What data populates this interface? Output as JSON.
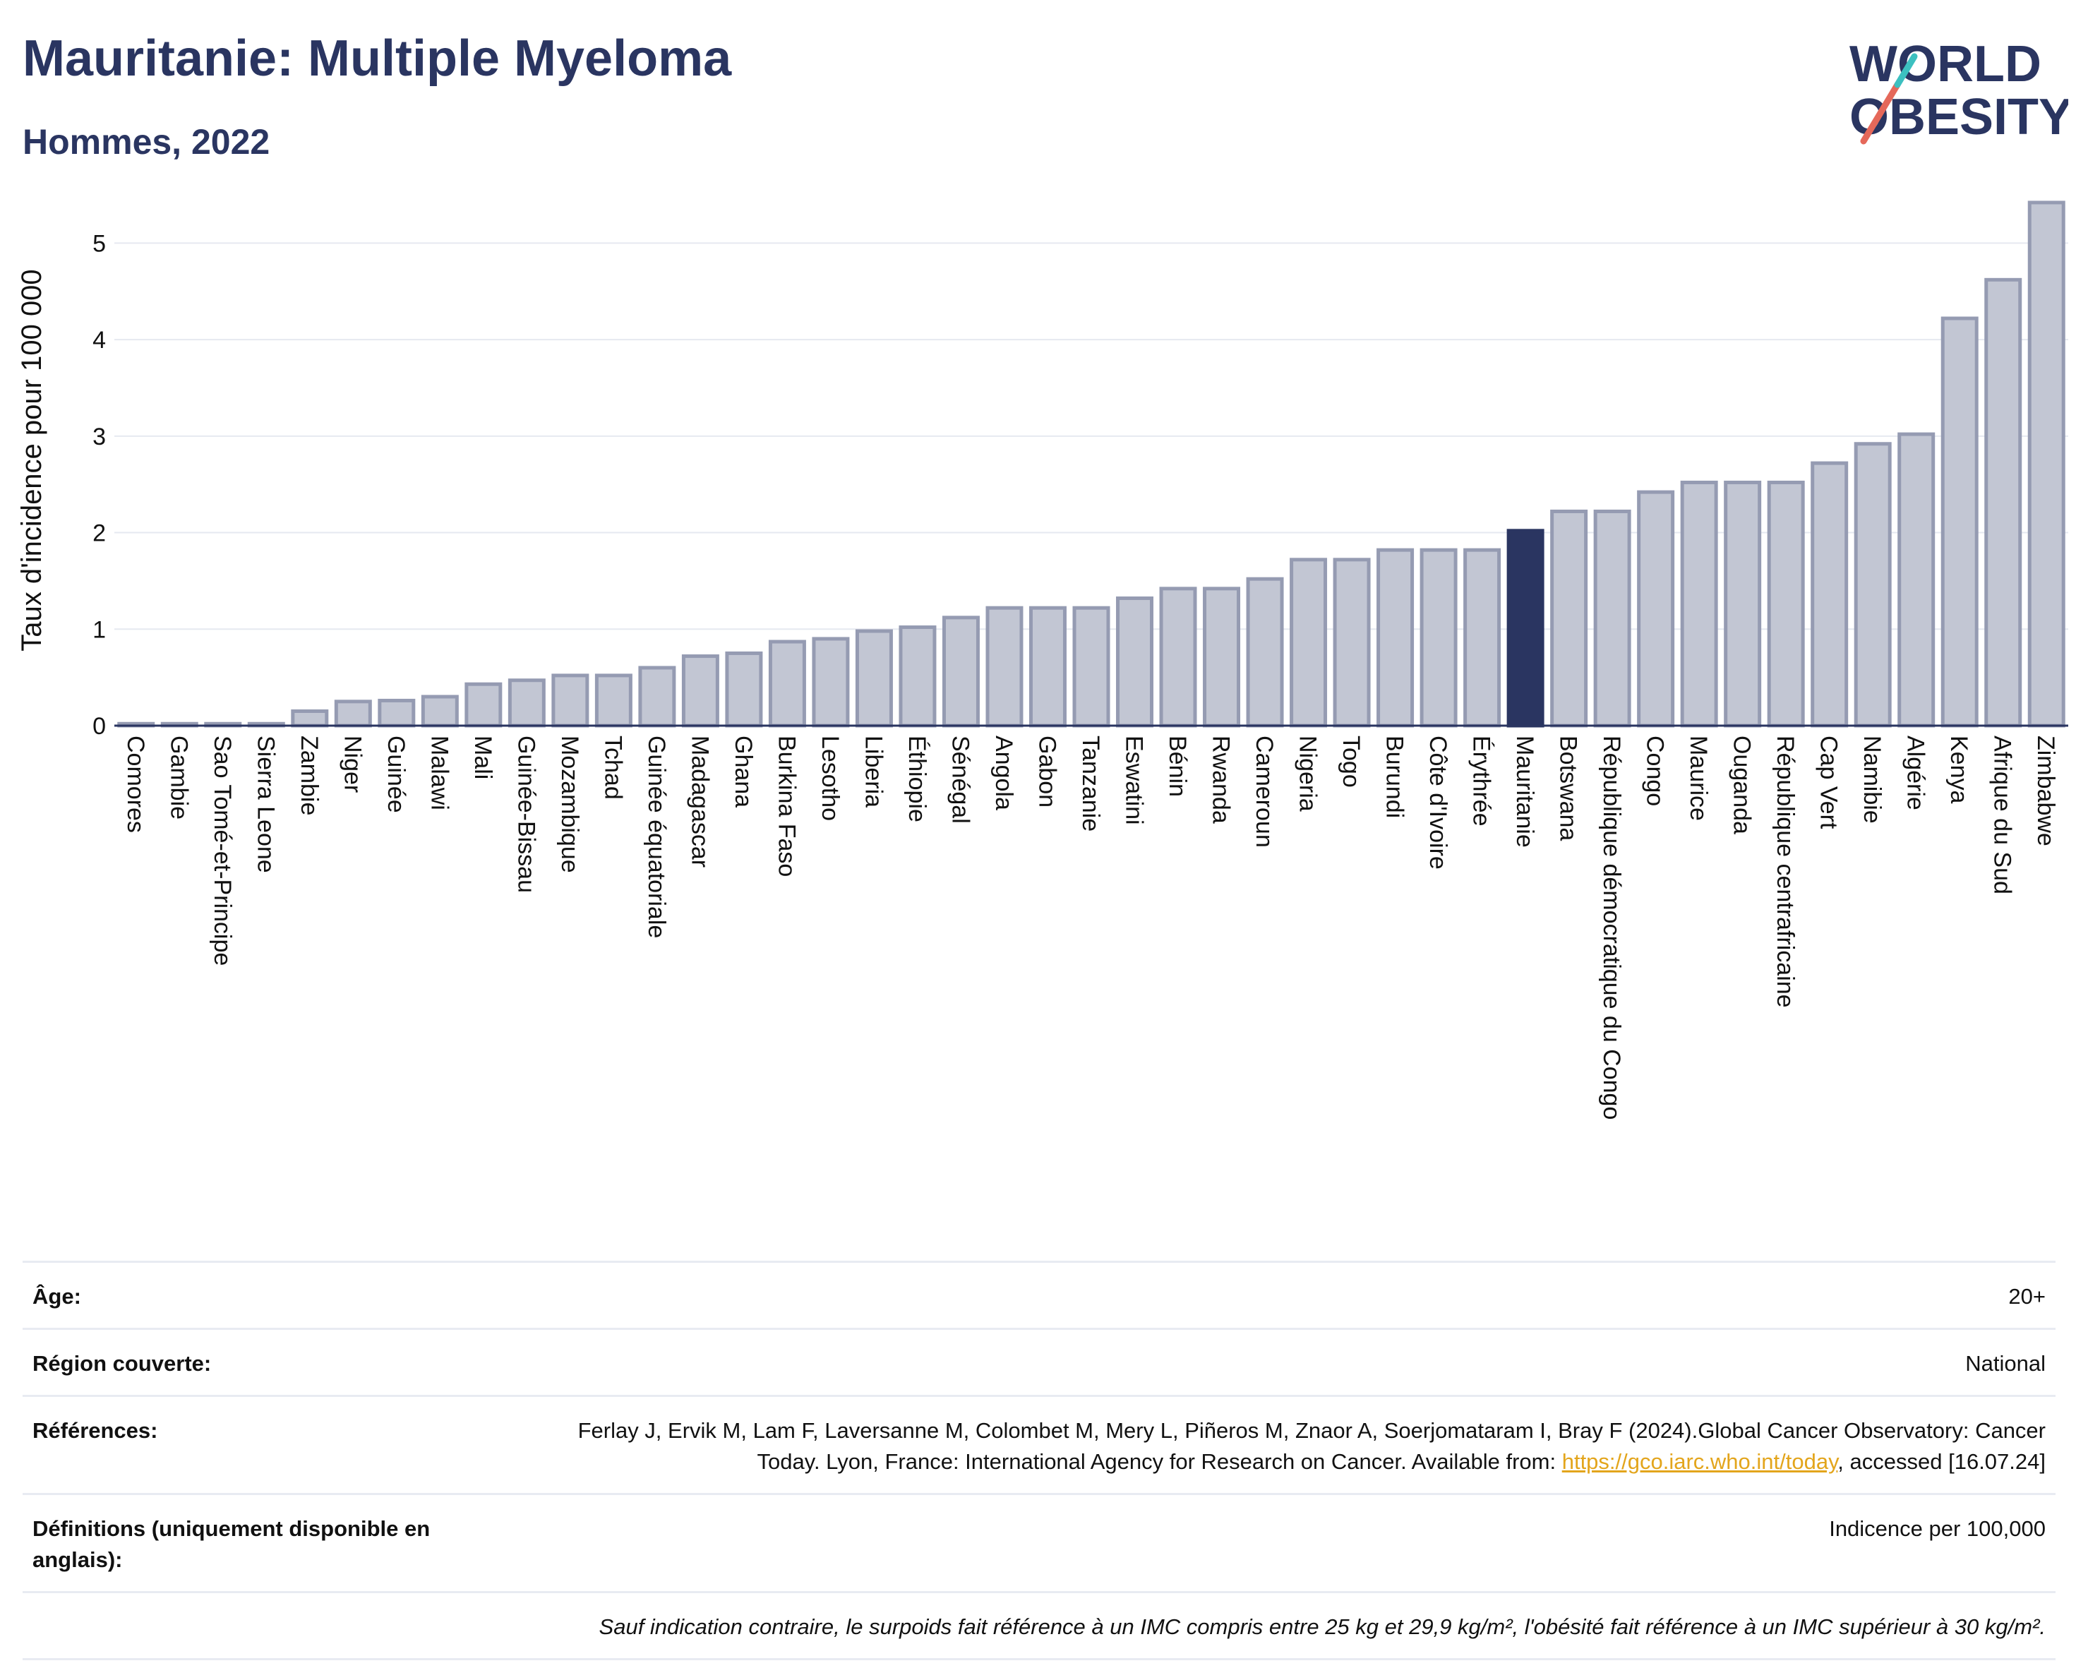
{
  "header": {
    "title": "Mauritanie: Multiple Myeloma",
    "subtitle": "Hommes, 2022"
  },
  "logo": {
    "line1": "WORLD",
    "line2": "OBESITY"
  },
  "colors": {
    "highlight": "#2a3561",
    "bar_fill": "#c2c6d3",
    "bar_stroke": "#959bb2",
    "grid": "#e6e9f0",
    "logo_slash_red": "#e5685a",
    "logo_slash_teal": "#3cc0c0"
  },
  "chart_data": {
    "type": "bar",
    "ylabel": "Taux d'incidence pour 100 000",
    "xlabel": "",
    "ylim": [
      0,
      5.5
    ],
    "yticks": [
      0,
      1,
      2,
      3,
      4,
      5
    ],
    "grid": true,
    "highlight": "Mauritanie",
    "categories": [
      "Comores",
      "Gambie",
      "Sao Tomé-et-Principe",
      "Sierra Leone",
      "Zambie",
      "Niger",
      "Guinée",
      "Malawi",
      "Mali",
      "Guinée-Bissau",
      "Mozambique",
      "Tchad",
      "Guinée équatoriale",
      "Madagascar",
      "Ghana",
      "Burkina Faso",
      "Lesotho",
      "Liberia",
      "Éthiopie",
      "Sénégal",
      "Angola",
      "Gabon",
      "Tanzanie",
      "Eswatini",
      "Bénin",
      "Rwanda",
      "Cameroun",
      "Nigeria",
      "Togo",
      "Burundi",
      "Côte d'Ivoire",
      "Érythrée",
      "Mauritanie",
      "Botswana",
      "République démocratique du Congo",
      "Congo",
      "Maurice",
      "Ouganda",
      "République centrafricaine",
      "Cap Vert",
      "Namibie",
      "Algérie",
      "Kenya",
      "Afrique du Sud",
      "Zimbabwe"
    ],
    "values": [
      0.02,
      0.02,
      0.02,
      0.02,
      0.15,
      0.25,
      0.26,
      0.3,
      0.43,
      0.47,
      0.52,
      0.52,
      0.6,
      0.72,
      0.75,
      0.87,
      0.9,
      0.98,
      1.02,
      1.12,
      1.22,
      1.22,
      1.22,
      1.32,
      1.42,
      1.42,
      1.52,
      1.72,
      1.72,
      1.82,
      1.82,
      1.82,
      2.02,
      2.22,
      2.22,
      2.42,
      2.52,
      2.52,
      2.52,
      2.72,
      2.92,
      3.02,
      4.22,
      4.62,
      5.42
    ]
  },
  "info": {
    "age_label": "Âge:",
    "age_value": "20+",
    "region_label": "Région couverte:",
    "region_value": "National",
    "references_label": "Références:",
    "references_text_1": "Ferlay J, Ervik M, Lam F, Laversanne M, Colombet M, Mery L, Piñeros M, Znaor A, Soerjomataram I, Bray F (2024).Global Cancer Observatory: Cancer Today. Lyon, France: International Agency for Research on Cancer. Available from: ",
    "references_link": "https://gco.iarc.who.int/today",
    "references_text_2": ", accessed [16.07.24]",
    "definitions_label": "Définitions (uniquement disponible en anglais):",
    "definitions_value": "Indicence per 100,000",
    "note": "Sauf indication contraire, le surpoids fait référence à un IMC compris entre 25 kg et 29,9 kg/m², l'obésité fait référence à un IMC supérieur à 30 kg/m²."
  }
}
